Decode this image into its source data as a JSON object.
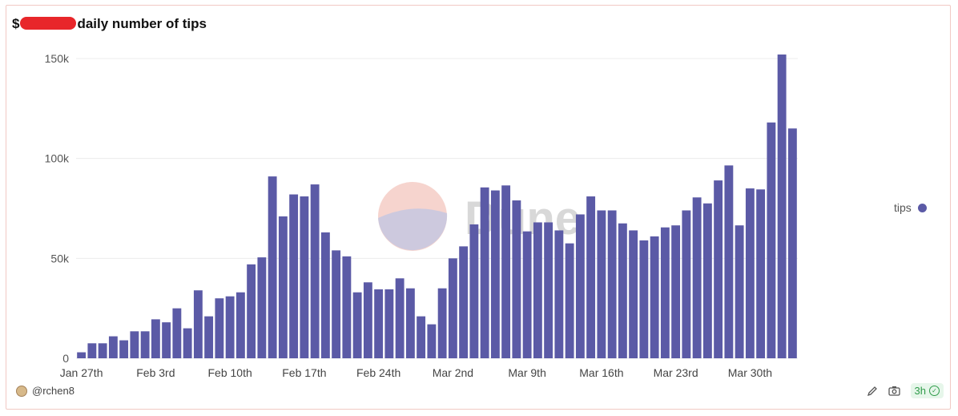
{
  "header": {
    "title_prefix": "$",
    "title_suffix": "daily number of tips"
  },
  "legend": {
    "label": "tips",
    "color": "#5b5aa6"
  },
  "watermark": {
    "text": "Dune"
  },
  "footer": {
    "author": "@rchen8",
    "age": "3h"
  },
  "chart_data": {
    "type": "bar",
    "title": "$ daily number of tips",
    "series": [
      {
        "name": "tips",
        "color": "#5b5aa6"
      }
    ],
    "x_tick_labels": [
      "Jan 27th",
      "Feb 3rd",
      "Feb 10th",
      "Feb 17th",
      "Feb 24th",
      "Mar 2nd",
      "Mar 9th",
      "Mar 16th",
      "Mar 23rd",
      "Mar 30th"
    ],
    "y_tick_labels": [
      "0",
      "50k",
      "100k",
      "150k"
    ],
    "ylim": [
      0,
      150000
    ],
    "start_date": "Jan 27th",
    "values": [
      3000,
      7500,
      7500,
      11000,
      9000,
      13500,
      13500,
      19500,
      18000,
      25000,
      15000,
      34000,
      21000,
      30000,
      31000,
      33000,
      47000,
      50500,
      91000,
      71000,
      82000,
      81000,
      87000,
      63000,
      54000,
      51000,
      33000,
      38000,
      34500,
      34500,
      40000,
      35000,
      21000,
      17000,
      35000,
      50000,
      56000,
      67000,
      85500,
      84000,
      86500,
      79000,
      63500,
      68000,
      68000,
      64000,
      57500,
      72000,
      81000,
      74000,
      74000,
      67500,
      64000,
      59000,
      61000,
      65500,
      66500,
      74000,
      80500,
      77500,
      89000,
      96500,
      66500,
      85000,
      84500,
      118000,
      152000,
      115000
    ],
    "grid": true,
    "legend_position": "right"
  }
}
